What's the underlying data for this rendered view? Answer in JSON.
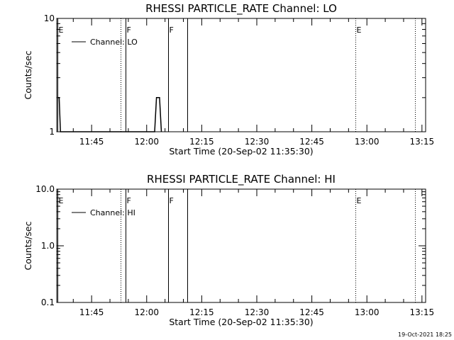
{
  "chart_data": [
    {
      "type": "line",
      "title": "RHESSI PARTICLE_RATE Channel: LO",
      "xlabel": "Start Time (20-Sep-02 11:35:30)",
      "ylabel": "Counts/sec",
      "yscale": "log",
      "ylim": [
        1,
        10
      ],
      "yticks": [
        1,
        10
      ],
      "ytick_labels": [
        "1",
        "10"
      ],
      "xlim": [
        "11:35:30",
        "13:16:00"
      ],
      "xticks": [
        "11:45",
        "12:00",
        "12:15",
        "12:30",
        "12:45",
        "13:00",
        "13:15"
      ],
      "grid": false,
      "legend": {
        "placement": "top-left",
        "label": "Channel: LO"
      },
      "series": [
        {
          "name": "Channel: LO",
          "points": [
            [
              "11:35:40",
              2
            ],
            [
              "11:36:10",
              2
            ],
            [
              "11:36:30",
              1
            ],
            [
              "12:02:10",
              1
            ],
            [
              "12:02:40",
              2
            ],
            [
              "12:03:30",
              2
            ],
            [
              "12:04:00",
              1
            ]
          ]
        }
      ],
      "flags": [
        {
          "label": "E",
          "time": "11:35:40",
          "style": "solid"
        },
        {
          "label": "",
          "time": "11:52:50",
          "style": "dotted"
        },
        {
          "label": "F",
          "time": "11:54:20",
          "style": "solid"
        },
        {
          "label": "F",
          "time": "12:05:50",
          "style": "solid"
        },
        {
          "label": "",
          "time": "12:11:00",
          "style": "solid"
        },
        {
          "label": "E",
          "time": "12:56:50",
          "style": "dotted"
        },
        {
          "label": "",
          "time": "13:13:10",
          "style": "dotted"
        }
      ]
    },
    {
      "type": "line",
      "title": "RHESSI PARTICLE_RATE Channel: HI",
      "xlabel": "Start Time (20-Sep-02 11:35:30)",
      "ylabel": "Counts/sec",
      "yscale": "log",
      "ylim": [
        0.1,
        10
      ],
      "yticks": [
        0.1,
        1,
        10
      ],
      "ytick_labels": [
        "0.1",
        "1.0",
        "10.0"
      ],
      "xlim": [
        "11:35:30",
        "13:16:00"
      ],
      "xticks": [
        "11:45",
        "12:00",
        "12:15",
        "12:30",
        "12:45",
        "13:00",
        "13:15"
      ],
      "grid": false,
      "legend": {
        "placement": "top-left",
        "label": "Channel: HI"
      },
      "series": [
        {
          "name": "Channel: HI",
          "points": []
        }
      ],
      "flags": [
        {
          "label": "E",
          "time": "11:35:40",
          "style": "solid"
        },
        {
          "label": "",
          "time": "11:52:50",
          "style": "dotted"
        },
        {
          "label": "F",
          "time": "11:54:20",
          "style": "solid"
        },
        {
          "label": "F",
          "time": "12:05:50",
          "style": "solid"
        },
        {
          "label": "",
          "time": "12:11:00",
          "style": "solid"
        },
        {
          "label": "E",
          "time": "12:56:50",
          "style": "dotted"
        },
        {
          "label": "",
          "time": "13:13:10",
          "style": "dotted"
        }
      ]
    }
  ],
  "footer": {
    "timestamp": "19-Oct-2021 18:25"
  }
}
